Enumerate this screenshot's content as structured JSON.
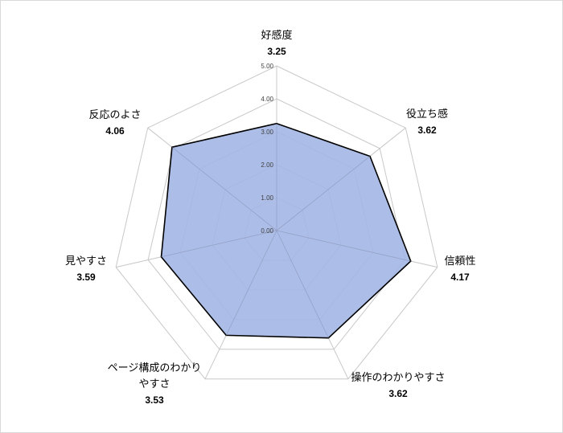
{
  "chart_data": {
    "type": "radar",
    "range": [
      0,
      5
    ],
    "ticks": [
      "0.00",
      "1.00",
      "2.00",
      "3.00",
      "4.00",
      "5.00"
    ],
    "tick_values": [
      0,
      1,
      2,
      3,
      4,
      5
    ],
    "axes": [
      {
        "label": "好感度",
        "label_lines": [
          "好感度"
        ],
        "value": 3.25,
        "value_text": "3.25"
      },
      {
        "label": "役立ち感",
        "label_lines": [
          "役立ち感"
        ],
        "value": 3.62,
        "value_text": "3.62"
      },
      {
        "label": "信頼性",
        "label_lines": [
          "信頼性"
        ],
        "value": 4.17,
        "value_text": "4.17"
      },
      {
        "label": "操作のわかりやすさ",
        "label_lines": [
          "操作のわかりやすさ"
        ],
        "value": 3.62,
        "value_text": "3.62"
      },
      {
        "label": "ページ構成のわかりやすさ",
        "label_lines": [
          "ページ構成のわかり",
          "やすさ"
        ],
        "value": 3.53,
        "value_text": "3.53"
      },
      {
        "label": "見やすさ",
        "label_lines": [
          "見やすさ"
        ],
        "value": 3.59,
        "value_text": "3.59"
      },
      {
        "label": "反応のよさ",
        "label_lines": [
          "反応のよさ"
        ],
        "value": 4.06,
        "value_text": "4.06"
      }
    ],
    "series_fill_color": "#a3b6e4",
    "series_line_color": "#000000",
    "grid_color": "#c8c8c8"
  }
}
